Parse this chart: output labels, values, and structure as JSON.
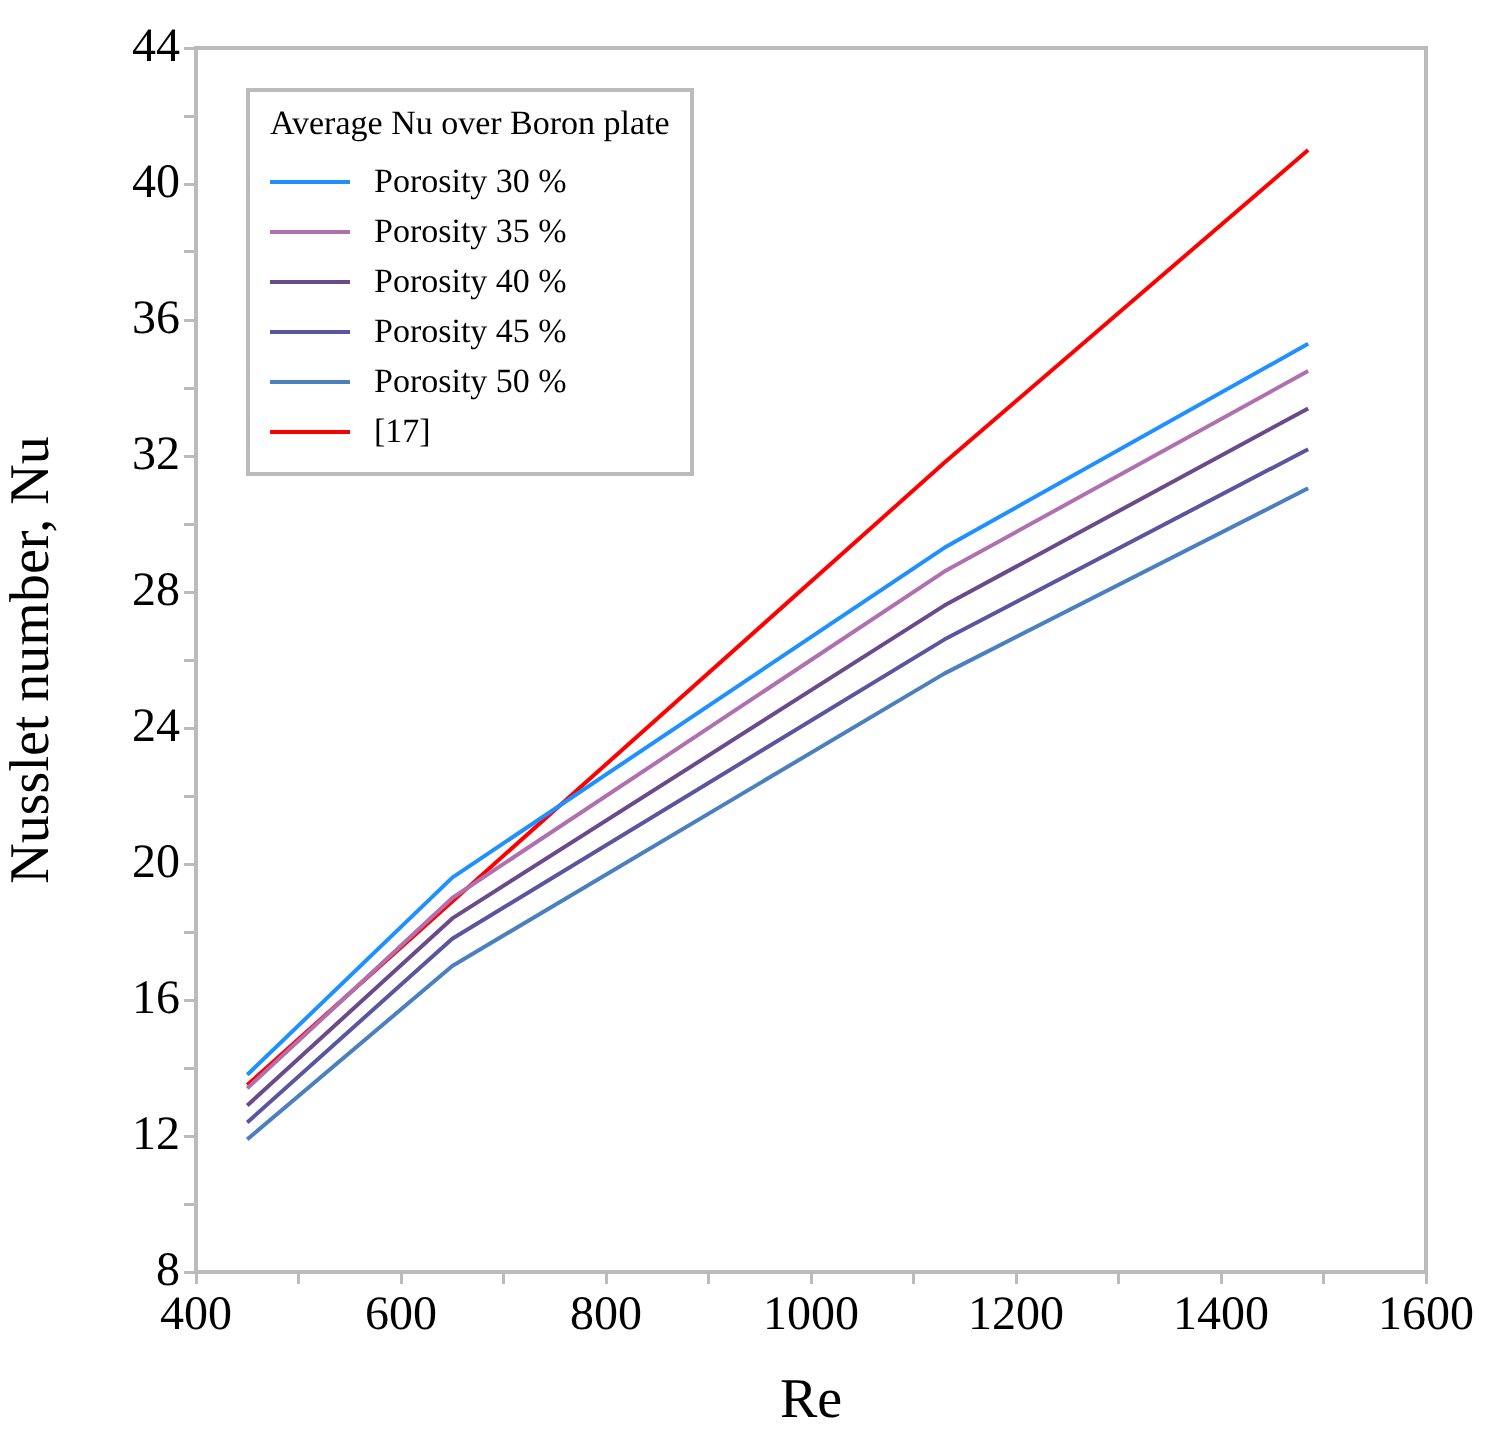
{
  "chart_data": {
    "type": "line",
    "xlabel": "Re",
    "ylabel": "Nusslet number, Nu",
    "legend_title": "Average Nu over Boron plate",
    "legend": "top left",
    "grid": false,
    "marker": "none",
    "line_style": "solid",
    "x": [
      450,
      650,
      1130,
      1485
    ],
    "xlim": [
      400,
      1600
    ],
    "xticks": [
      400,
      {
        "value": 500,
        "label": null
      },
      600,
      {
        "value": 700,
        "label": null
      },
      800,
      {
        "value": 900,
        "label": null
      },
      1000,
      {
        "value": 1100,
        "label": null
      },
      1200,
      {
        "value": 1300,
        "label": null
      },
      1400,
      {
        "value": 1500,
        "label": null
      },
      1600
    ],
    "ylim": [
      8,
      44
    ],
    "yticks": [
      8,
      {
        "value": 10,
        "label": null
      },
      12,
      {
        "value": 14,
        "label": null
      },
      16,
      {
        "value": 18,
        "label": null
      },
      20,
      {
        "value": 22,
        "label": null
      },
      24,
      {
        "value": 26,
        "label": null
      },
      28,
      {
        "value": 30,
        "label": null
      },
      32,
      {
        "value": 34,
        "label": null
      },
      36,
      {
        "value": 38,
        "label": null
      },
      40,
      {
        "value": 42,
        "label": null
      },
      44
    ],
    "series": [
      {
        "name": "Porosity 30 %",
        "color": "#1e90ff",
        "values": [
          13.8,
          19.6,
          29.3,
          35.3
        ]
      },
      {
        "name": "Porosity 35 %",
        "color": "#b070b0",
        "values": [
          13.4,
          19.0,
          28.6,
          34.5
        ]
      },
      {
        "name": "Porosity 40 %",
        "color": "#6a4a8a",
        "values": [
          12.9,
          18.4,
          27.6,
          33.4
        ]
      },
      {
        "name": "Porosity 45 %",
        "color": "#5a55a0",
        "values": [
          12.4,
          17.8,
          26.6,
          32.2
        ]
      },
      {
        "name": "Porosity 50 %",
        "color": "#4a80c0",
        "values": [
          11.9,
          17.0,
          25.6,
          31.05
        ]
      },
      {
        "name": "[17]",
        "color": "#ff0000",
        "values": [
          13.5,
          18.9,
          31.8,
          41.0
        ]
      }
    ]
  }
}
